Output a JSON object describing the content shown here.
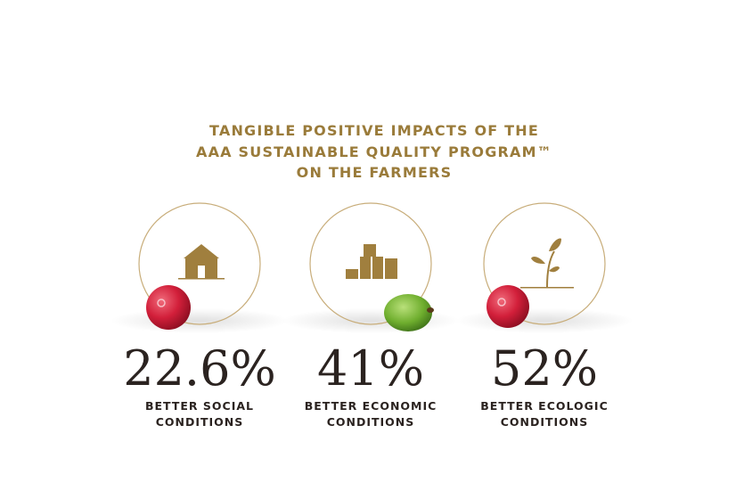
{
  "header": {
    "title": [
      "TANGIBLE POSITIVE IMPACTS OF THE",
      "AAA SUSTAINABLE QUALITY PROGRAM™",
      "ON THE FARMERS"
    ]
  },
  "items": [
    {
      "value": "22.6%",
      "label": [
        "BETTER SOCIAL",
        "CONDITIONS"
      ]
    },
    {
      "value": "41%",
      "label": [
        "BETTER ECONOMIC",
        "CONDITIONS"
      ]
    },
    {
      "value": "52%",
      "label": [
        "BETTER ECOLOGIC",
        "CONDITIONS"
      ]
    }
  ]
}
